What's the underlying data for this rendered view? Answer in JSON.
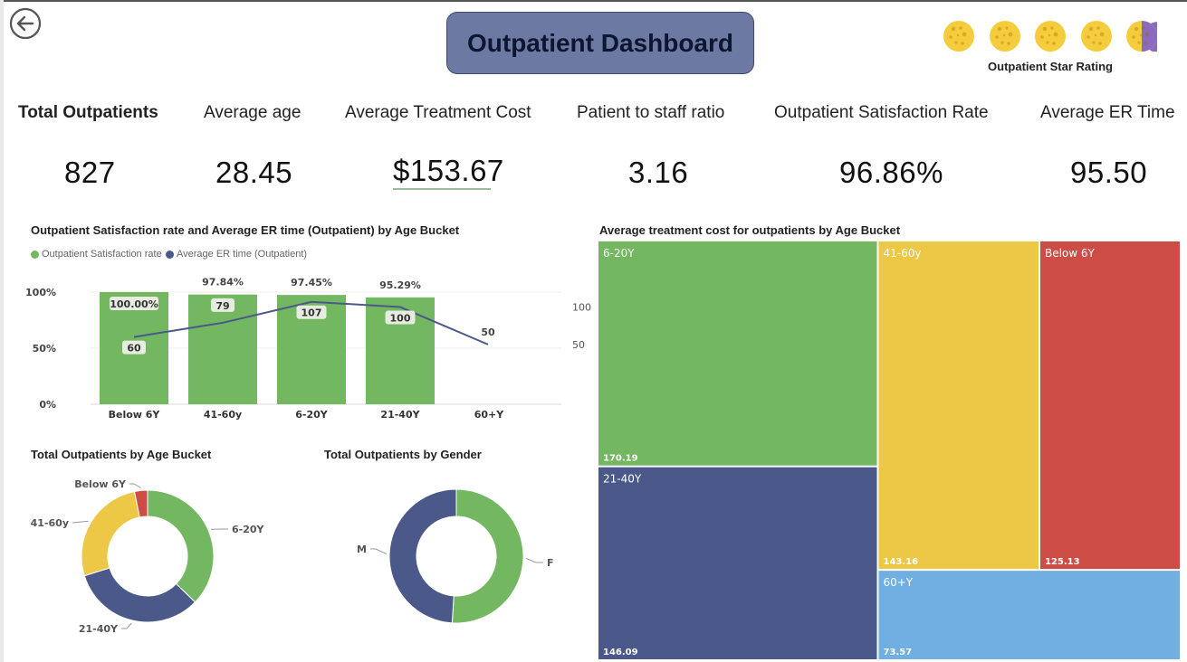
{
  "header": {
    "title": "Outpatient Dashboard",
    "star_rating_label": "Outpatient Star Rating",
    "star_rating": 4.5,
    "star_count": 5,
    "back_icon": "back-arrow-icon"
  },
  "kpis": [
    {
      "label": "Total Outpatients",
      "value": "827"
    },
    {
      "label": "Average age",
      "value": "28.45"
    },
    {
      "label": "Average Treatment Cost",
      "value": "$153.67"
    },
    {
      "label": "Patient to staff ratio",
      "value": "3.16"
    },
    {
      "label": "Outpatient Satisfaction Rate",
      "value": "96.86%"
    },
    {
      "label": "Average ER Time",
      "value": "95.50"
    }
  ],
  "colors": {
    "green": "#73b761",
    "navy": "#4a588a",
    "yellow": "#ecc846",
    "red": "#cd4c46",
    "lightblue": "#71afe2",
    "purple": "#8a6bbd"
  },
  "chart_data": [
    {
      "type": "bar",
      "title": "Outpatient Satisfaction rate and Average ER time (Outpatient) by Age Bucket",
      "categories": [
        "Below 6Y",
        "41-60y",
        "6-20Y",
        "21-40Y",
        "60+Y"
      ],
      "series": [
        {
          "name": "Outpatient Satisfaction rate",
          "type": "bar",
          "axis": "left",
          "values": [
            100.0,
            97.84,
            97.45,
            95.29,
            null
          ],
          "labels": [
            "100.00%",
            "97.84%",
            "97.45%",
            "95.29%",
            ""
          ]
        },
        {
          "name": "Average ER time (Outpatient)",
          "type": "line",
          "axis": "right",
          "values": [
            60,
            79,
            107,
            100,
            50
          ],
          "labels": [
            "60",
            "79",
            "107",
            "100",
            "50"
          ]
        }
      ],
      "y_left": {
        "ticks": [
          "0%",
          "50%",
          "100%"
        ],
        "range": [
          0,
          100
        ]
      },
      "y_right": {
        "ticks": [
          "50",
          "100"
        ],
        "range": [
          -30,
          120
        ]
      },
      "legend_position": "top-left"
    },
    {
      "type": "pie",
      "title": "Total Outpatients by Age Bucket",
      "categories": [
        "6-20Y",
        "21-40Y",
        "41-60y",
        "Below 6Y"
      ],
      "values": [
        35,
        31,
        25,
        3
      ],
      "donut": true
    },
    {
      "type": "pie",
      "title": "Total Outpatients by Gender",
      "categories": [
        "F",
        "M"
      ],
      "values": [
        51,
        49
      ],
      "donut": true
    },
    {
      "type": "treemap",
      "title": "Average treatment cost for outpatients by Age Bucket",
      "categories": [
        "6-20Y",
        "21-40Y",
        "41-60y",
        "Below 6Y",
        "60+Y"
      ],
      "values": [
        170.19,
        146.09,
        143.16,
        125.13,
        73.57
      ],
      "labels": [
        "170.19",
        "146.09",
        "143.16",
        "125.13",
        "73.57"
      ]
    }
  ]
}
